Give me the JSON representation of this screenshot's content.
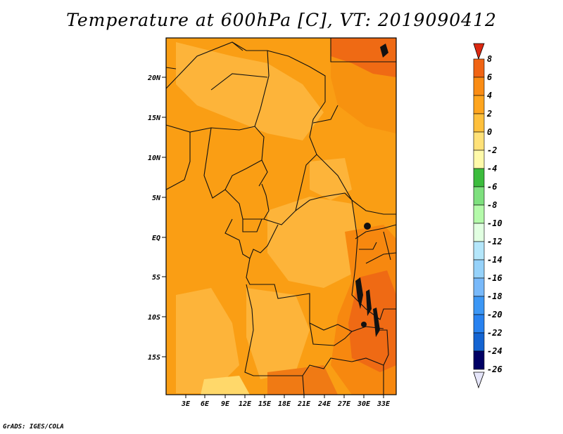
{
  "title": "Temperature at 600hPa [C], VT: 2019090412",
  "credit": "GrADS: IGES/COLA",
  "map": {
    "lat_ticks": [
      "20N",
      "15N",
      "10N",
      "5N",
      "EQ",
      "5S",
      "10S",
      "15S"
    ],
    "lon_ticks": [
      "3E",
      "6E",
      "9E",
      "12E",
      "15E",
      "18E",
      "21E",
      "24E",
      "27E",
      "30E",
      "33E"
    ]
  },
  "colorbar": {
    "labels": [
      "8",
      "6",
      "4",
      "2",
      "0",
      "-2",
      "-4",
      "-6",
      "-8",
      "-10",
      "-12",
      "-14",
      "-16",
      "-18",
      "-20",
      "-22",
      "-24",
      "-26"
    ],
    "colors": [
      "#dc2810",
      "#f06414",
      "#fa8c14",
      "#ffa51e",
      "#ffc03c",
      "#ffe178",
      "#fffaaa",
      "#3cbc3d",
      "#7ee07e",
      "#b4faaa",
      "#e1ffe1",
      "#b4e6fa",
      "#96d2fa",
      "#78b9fa",
      "#3c97f5",
      "#2882f0",
      "#1464d2",
      "#0a46b4"
    ],
    "top_triangle_color": "#dc2810",
    "bottom_triangle_color": "#e6e6fa",
    "bottom_bin_color": "#000064"
  }
}
